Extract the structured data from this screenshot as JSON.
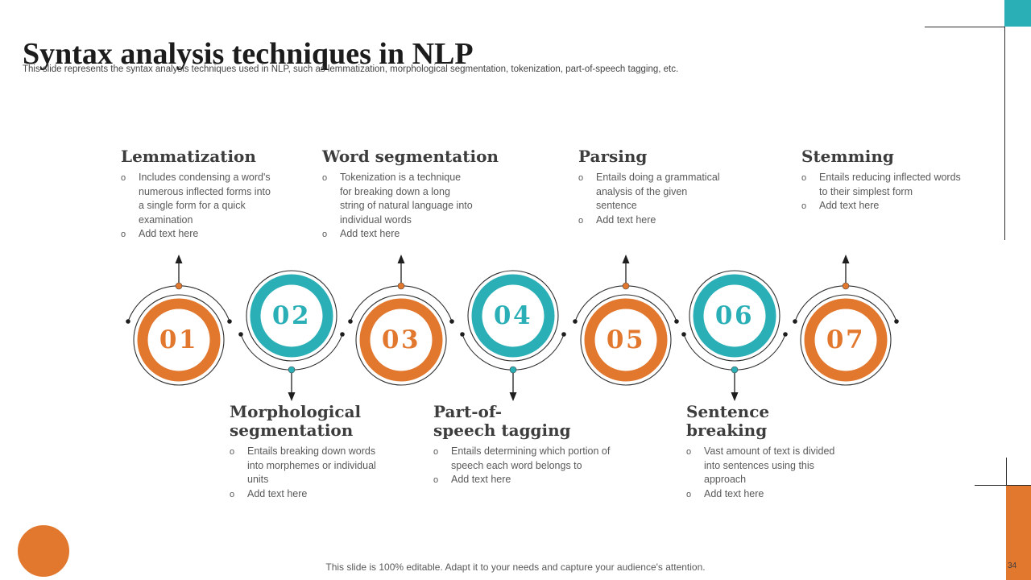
{
  "slide": {
    "title": "Syntax analysis techniques in NLP",
    "subtitle": "This slide represents the syntax analysis techniques used in NLP, such as lemmatization, morphological segmentation, tokenization, part-of-speech tagging, etc.",
    "footer": "This slide is 100% editable. Adapt it to your needs and capture your audience's attention.",
    "page_number": "34"
  },
  "colors": {
    "orange": "#E2772E",
    "teal": "#2AAFB6",
    "line": "#2f2f2f"
  },
  "bullet_marker": "o",
  "top_blocks": [
    {
      "title": "Lemmatization",
      "bullets": [
        "Includes condensing a word's numerous inflected forms into a single form for a quick examination",
        "Add text here"
      ]
    },
    {
      "title": "Word segmentation",
      "bullets": [
        "Tokenization is a technique for breaking down a long string of natural language into individual words",
        "Add text here"
      ]
    },
    {
      "title": "Parsing",
      "bullets": [
        "Entails doing a grammatical analysis of the given sentence",
        "Add text here"
      ]
    },
    {
      "title": "Stemming",
      "bullets": [
        "Entails reducing inflected words to their simplest form",
        "Add text here"
      ]
    }
  ],
  "bottom_blocks": [
    {
      "title": "Morphological\nsegmentation",
      "bullets": [
        "Entails breaking down words into morphemes or individual units",
        "Add text here"
      ]
    },
    {
      "title": "Part-of-\nspeech tagging",
      "bullets": [
        "Entails determining which portion of speech each word belongs to",
        "Add text here"
      ]
    },
    {
      "title": "Sentence\nbreaking",
      "bullets": [
        "Vast amount of text is divided into sentences using this approach",
        "Add text here"
      ]
    }
  ],
  "timeline": [
    {
      "number": "01",
      "color": "orange",
      "direction": "up"
    },
    {
      "number": "02",
      "color": "teal",
      "direction": "down"
    },
    {
      "number": "03",
      "color": "orange",
      "direction": "up"
    },
    {
      "number": "04",
      "color": "teal",
      "direction": "down"
    },
    {
      "number": "05",
      "color": "orange",
      "direction": "up"
    },
    {
      "number": "06",
      "color": "teal",
      "direction": "down"
    },
    {
      "number": "07",
      "color": "orange",
      "direction": "up"
    }
  ]
}
